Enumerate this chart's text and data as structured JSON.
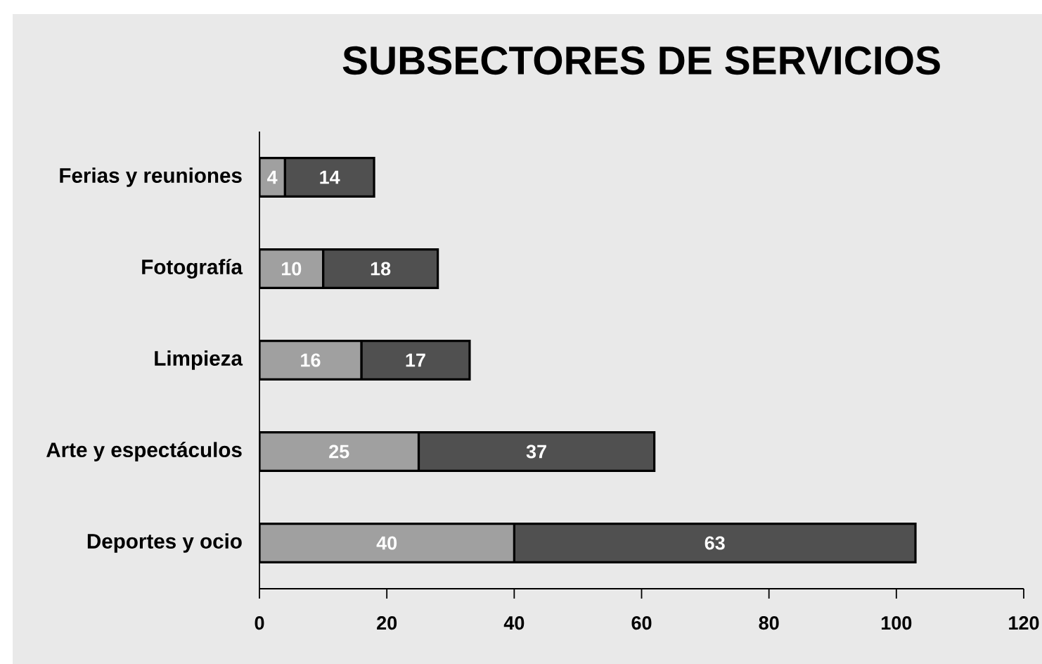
{
  "chart_data": {
    "type": "bar",
    "orientation": "horizontal",
    "stacked": true,
    "title": "SUBSECTORES DE SERVICIOS",
    "categories": [
      "Ferias y reuniones",
      "Fotografía",
      "Limpieza",
      "Arte y espectáculos",
      "Deportes y ocio"
    ],
    "series": [
      {
        "color": "#a0a0a0",
        "values": [
          4,
          10,
          16,
          25,
          40
        ]
      },
      {
        "color": "#505050",
        "values": [
          14,
          18,
          17,
          37,
          63
        ]
      }
    ],
    "xlim": [
      0,
      120
    ],
    "xticks": [
      0,
      20,
      40,
      60,
      80,
      100,
      120
    ],
    "data_labels": true
  }
}
